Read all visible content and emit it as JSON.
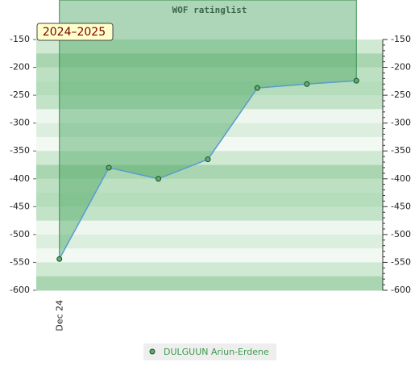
{
  "chart_data": {
    "type": "line",
    "title": "WOF ratinglist",
    "annotation": "2024–2025",
    "categories": [
      "Dec 24",
      null,
      null,
      null,
      null,
      null,
      null
    ],
    "series": [
      {
        "name": "DULGUUN Ariun-Erdene",
        "color": "#5b9bd5",
        "marker_color": "#5cae6a",
        "values": [
          -544,
          -380,
          -400,
          -365,
          -237,
          -230,
          -224
        ]
      }
    ],
    "ylim": [
      -600,
      -150
    ],
    "yticks": [
      -600,
      -550,
      -500,
      -450,
      -400,
      -350,
      -300,
      -250,
      -200,
      -150
    ],
    "y2lim": [
      -600,
      -150
    ],
    "y2ticks": [
      -600,
      -550,
      -500,
      -450,
      -400,
      -350,
      -300,
      -250,
      -200,
      -150
    ],
    "legend": "bottom"
  }
}
